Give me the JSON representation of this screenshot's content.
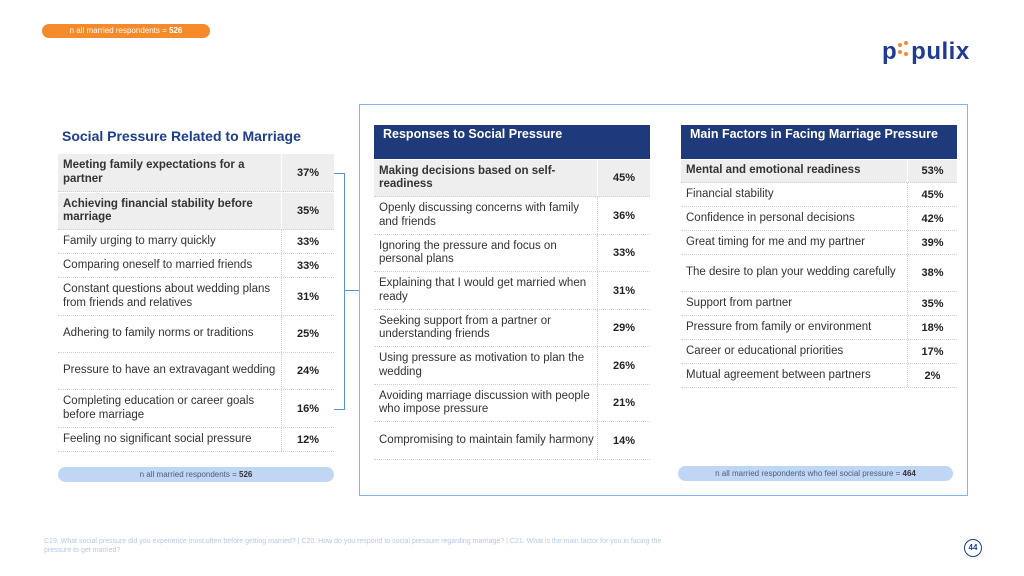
{
  "top_badge": {
    "prefix": "n all married respondents = ",
    "value": "526"
  },
  "logo": {
    "before": "p",
    "after": "pulix"
  },
  "left": {
    "title": "Social Pressure Related to Marriage",
    "rows": [
      {
        "label": "Meeting family expectations for a partner",
        "value": "37%"
      },
      {
        "label": "Achieving financial stability before marriage",
        "value": "35%"
      },
      {
        "label": "Family urging to marry quickly",
        "value": "33%"
      },
      {
        "label": "Comparing oneself to married friends",
        "value": "33%"
      },
      {
        "label": "Constant questions about wedding plans from friends and relatives",
        "value": "31%"
      },
      {
        "label": "Adhering to family norms or traditions",
        "value": "25%"
      },
      {
        "label": "Pressure to have an extravagant wedding",
        "value": "24%"
      },
      {
        "label": "Completing education or career goals before marriage",
        "value": "16%"
      },
      {
        "label": "Feeling no significant social pressure",
        "value": "12%"
      }
    ],
    "footer": {
      "prefix": "n all married respondents = ",
      "value": "526"
    }
  },
  "middle": {
    "header": "Responses to Social Pressure",
    "rows": [
      {
        "label": "Making decisions based on self-readiness",
        "value": "45%"
      },
      {
        "label": "Openly discussing concerns with family and friends",
        "value": "36%"
      },
      {
        "label": "Ignoring the pressure and focus on personal plans",
        "value": "33%"
      },
      {
        "label": "Explaining that I would get married when ready",
        "value": "31%"
      },
      {
        "label": "Seeking support from a partner or understanding friends",
        "value": "29%"
      },
      {
        "label": "Using pressure as motivation to plan the wedding",
        "value": "26%"
      },
      {
        "label": "Avoiding marriage discussion with people who impose pressure",
        "value": "21%"
      },
      {
        "label": "Compromising to maintain family harmony",
        "value": "14%"
      }
    ]
  },
  "right": {
    "header": "Main Factors in Facing Marriage Pressure",
    "rows": [
      {
        "label": "Mental and emotional readiness",
        "value": "53%"
      },
      {
        "label": "Financial stability",
        "value": "45%"
      },
      {
        "label": "Confidence in personal decisions",
        "value": "42%"
      },
      {
        "label": "Great timing for me and my partner",
        "value": "39%"
      },
      {
        "label": "The desire to plan your wedding carefully",
        "value": "38%"
      },
      {
        "label": "Support from partner",
        "value": "35%"
      },
      {
        "label": "Pressure from family or environment",
        "value": "18%"
      },
      {
        "label": "Career or educational priorities",
        "value": "17%"
      },
      {
        "label": "Mutual agreement between partners",
        "value": "2%"
      }
    ],
    "footer": {
      "prefix": "n all married respondents who feel social pressure = ",
      "value": "464"
    }
  },
  "footnote": "C19. What social pressure did you experience most often before getting married? | C20. How do you respond to social pressure regarding marriage? | C21. What is the main factor for you in facing the pressure to get married?",
  "page_number": "44",
  "colors": {
    "accent_orange": "#f58a2a",
    "navy": "#1f3a7a",
    "light_blue": "#bfd7f5",
    "box_border": "#86b3e8"
  }
}
